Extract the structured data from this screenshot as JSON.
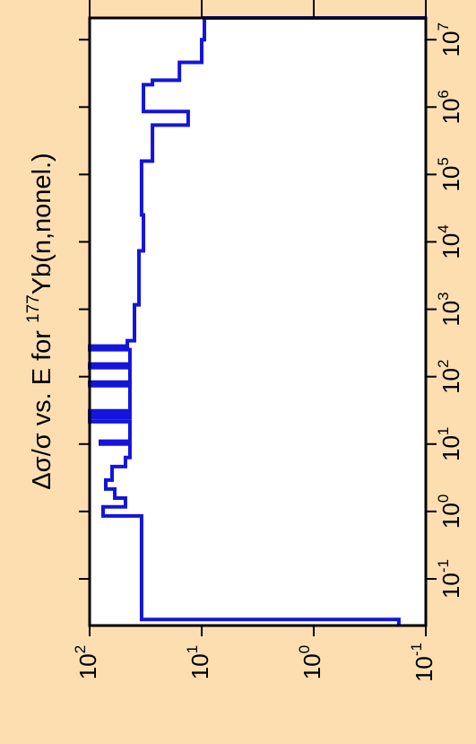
{
  "chart_data": {
    "type": "line",
    "step": "post",
    "orientation": "rotated",
    "title": {
      "text": "Δσ/σ vs. E for ",
      "superscript": "177",
      "suffix": "Yb(n,nonel.)"
    },
    "x": [
      0.0203,
      0.025,
      0.86,
      1.17,
      1.58,
      2.15,
      2.93,
      4.64,
      6.31,
      10,
      11,
      21.5,
      24.4,
      27.5,
      31.1,
      73.6,
      83.2,
      136,
      154,
      251,
      284,
      341,
      1166,
      7360,
      25100,
      158000,
      541000,
      858000,
      2150000,
      2500000,
      4600000,
      10000000,
      21000000
    ],
    "values": [
      0.174,
      34.4,
      75.9,
      47.9,
      59.7,
      71.8,
      63.1,
      47.9,
      43.7,
      80.2,
      43.7,
      100,
      43.7,
      100,
      43.7,
      100,
      43.7,
      100,
      43.7,
      100,
      46.1,
      39.8,
      36.3,
      33.1,
      34.4,
      27.5,
      13.2,
      33.1,
      27.5,
      15.8,
      10,
      9.46,
      0.1
    ],
    "color": "#1414dc",
    "xscale": "log",
    "yscale": "log",
    "xlim": [
      0.0203,
      21000000
    ],
    "ylim": [
      100,
      0.1
    ],
    "xticks": [
      {
        "value": 0.1,
        "label": "10",
        "exponent": "-1"
      },
      {
        "value": 1,
        "label": "10",
        "exponent": "0"
      },
      {
        "value": 10,
        "label": "10",
        "exponent": "1"
      },
      {
        "value": 100,
        "label": "10",
        "exponent": "2"
      },
      {
        "value": 1000,
        "label": "10",
        "exponent": "3"
      },
      {
        "value": 10000,
        "label": "10",
        "exponent": "4"
      },
      {
        "value": 100000,
        "label": "10",
        "exponent": "5"
      },
      {
        "value": 1000000,
        "label": "10",
        "exponent": "6"
      },
      {
        "value": 10000000,
        "label": "10",
        "exponent": "7"
      }
    ],
    "yticks": [
      {
        "value": 100,
        "label": "10",
        "exponent": "2"
      },
      {
        "value": 10,
        "label": "10",
        "exponent": "1"
      },
      {
        "value": 1,
        "label": "10",
        "exponent": "0"
      },
      {
        "value": 0.1,
        "label": "10",
        "exponent": "-1"
      }
    ]
  }
}
